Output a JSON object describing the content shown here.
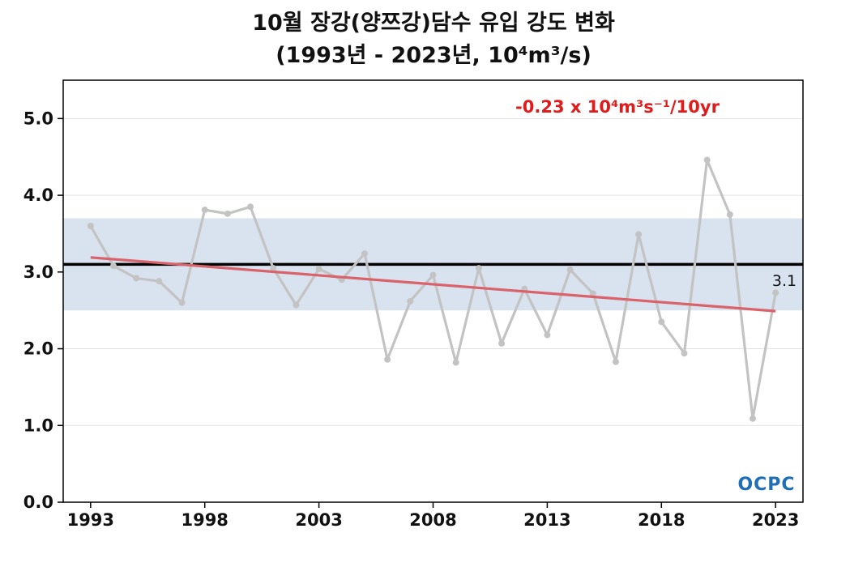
{
  "title_line1": "10월 장강(양쯔강)담수 유입 강도 변화",
  "title_line2": "(1993년 - 2023년, 10⁴m³/s)",
  "logo_text": "OCPC",
  "colors": {
    "series": "#c3c3c3",
    "trend": "#d9626b",
    "band": "#d8e3ef",
    "reference": "#000000",
    "annotation": "#e01b1b"
  },
  "chart_data": {
    "type": "line",
    "title": "10월 장강(양쯔강)담수 유입 강도 변화 (1993년 - 2023년, 10⁴m³/s)",
    "x": [
      1993,
      1994,
      1995,
      1996,
      1997,
      1998,
      1999,
      2000,
      2001,
      2002,
      2003,
      2004,
      2005,
      2006,
      2007,
      2008,
      2009,
      2010,
      2011,
      2012,
      2013,
      2014,
      2015,
      2016,
      2017,
      2018,
      2019,
      2020,
      2021,
      2022,
      2023
    ],
    "series": [
      {
        "values": [
          3.6,
          3.08,
          2.92,
          2.88,
          2.6,
          3.81,
          3.76,
          3.85,
          3.05,
          2.57,
          3.04,
          2.9,
          3.24,
          1.86,
          2.62,
          2.96,
          1.82,
          3.05,
          2.07,
          2.78,
          2.18,
          3.03,
          2.72,
          1.83,
          3.49,
          2.35,
          1.94,
          4.46,
          3.75,
          1.09,
          2.73
        ]
      }
    ],
    "xticks": [
      "1993",
      "1998",
      "2003",
      "2008",
      "2013",
      "2018",
      "2023"
    ],
    "yticks": [
      "0.0",
      "1.0",
      "2.0",
      "3.0",
      "4.0",
      "5.0"
    ],
    "xlim": [
      1991.8,
      2024.2
    ],
    "ylim": [
      0,
      5.5
    ],
    "reference_line": {
      "value": 3.1,
      "label": "3.1"
    },
    "band": [
      2.5,
      3.7
    ],
    "trend": {
      "start": [
        1993,
        3.19
      ],
      "end": [
        2023,
        2.49
      ]
    },
    "annotation": "-0.23 x 10⁴m³s⁻¹/10yr",
    "grid": "horizontal"
  }
}
